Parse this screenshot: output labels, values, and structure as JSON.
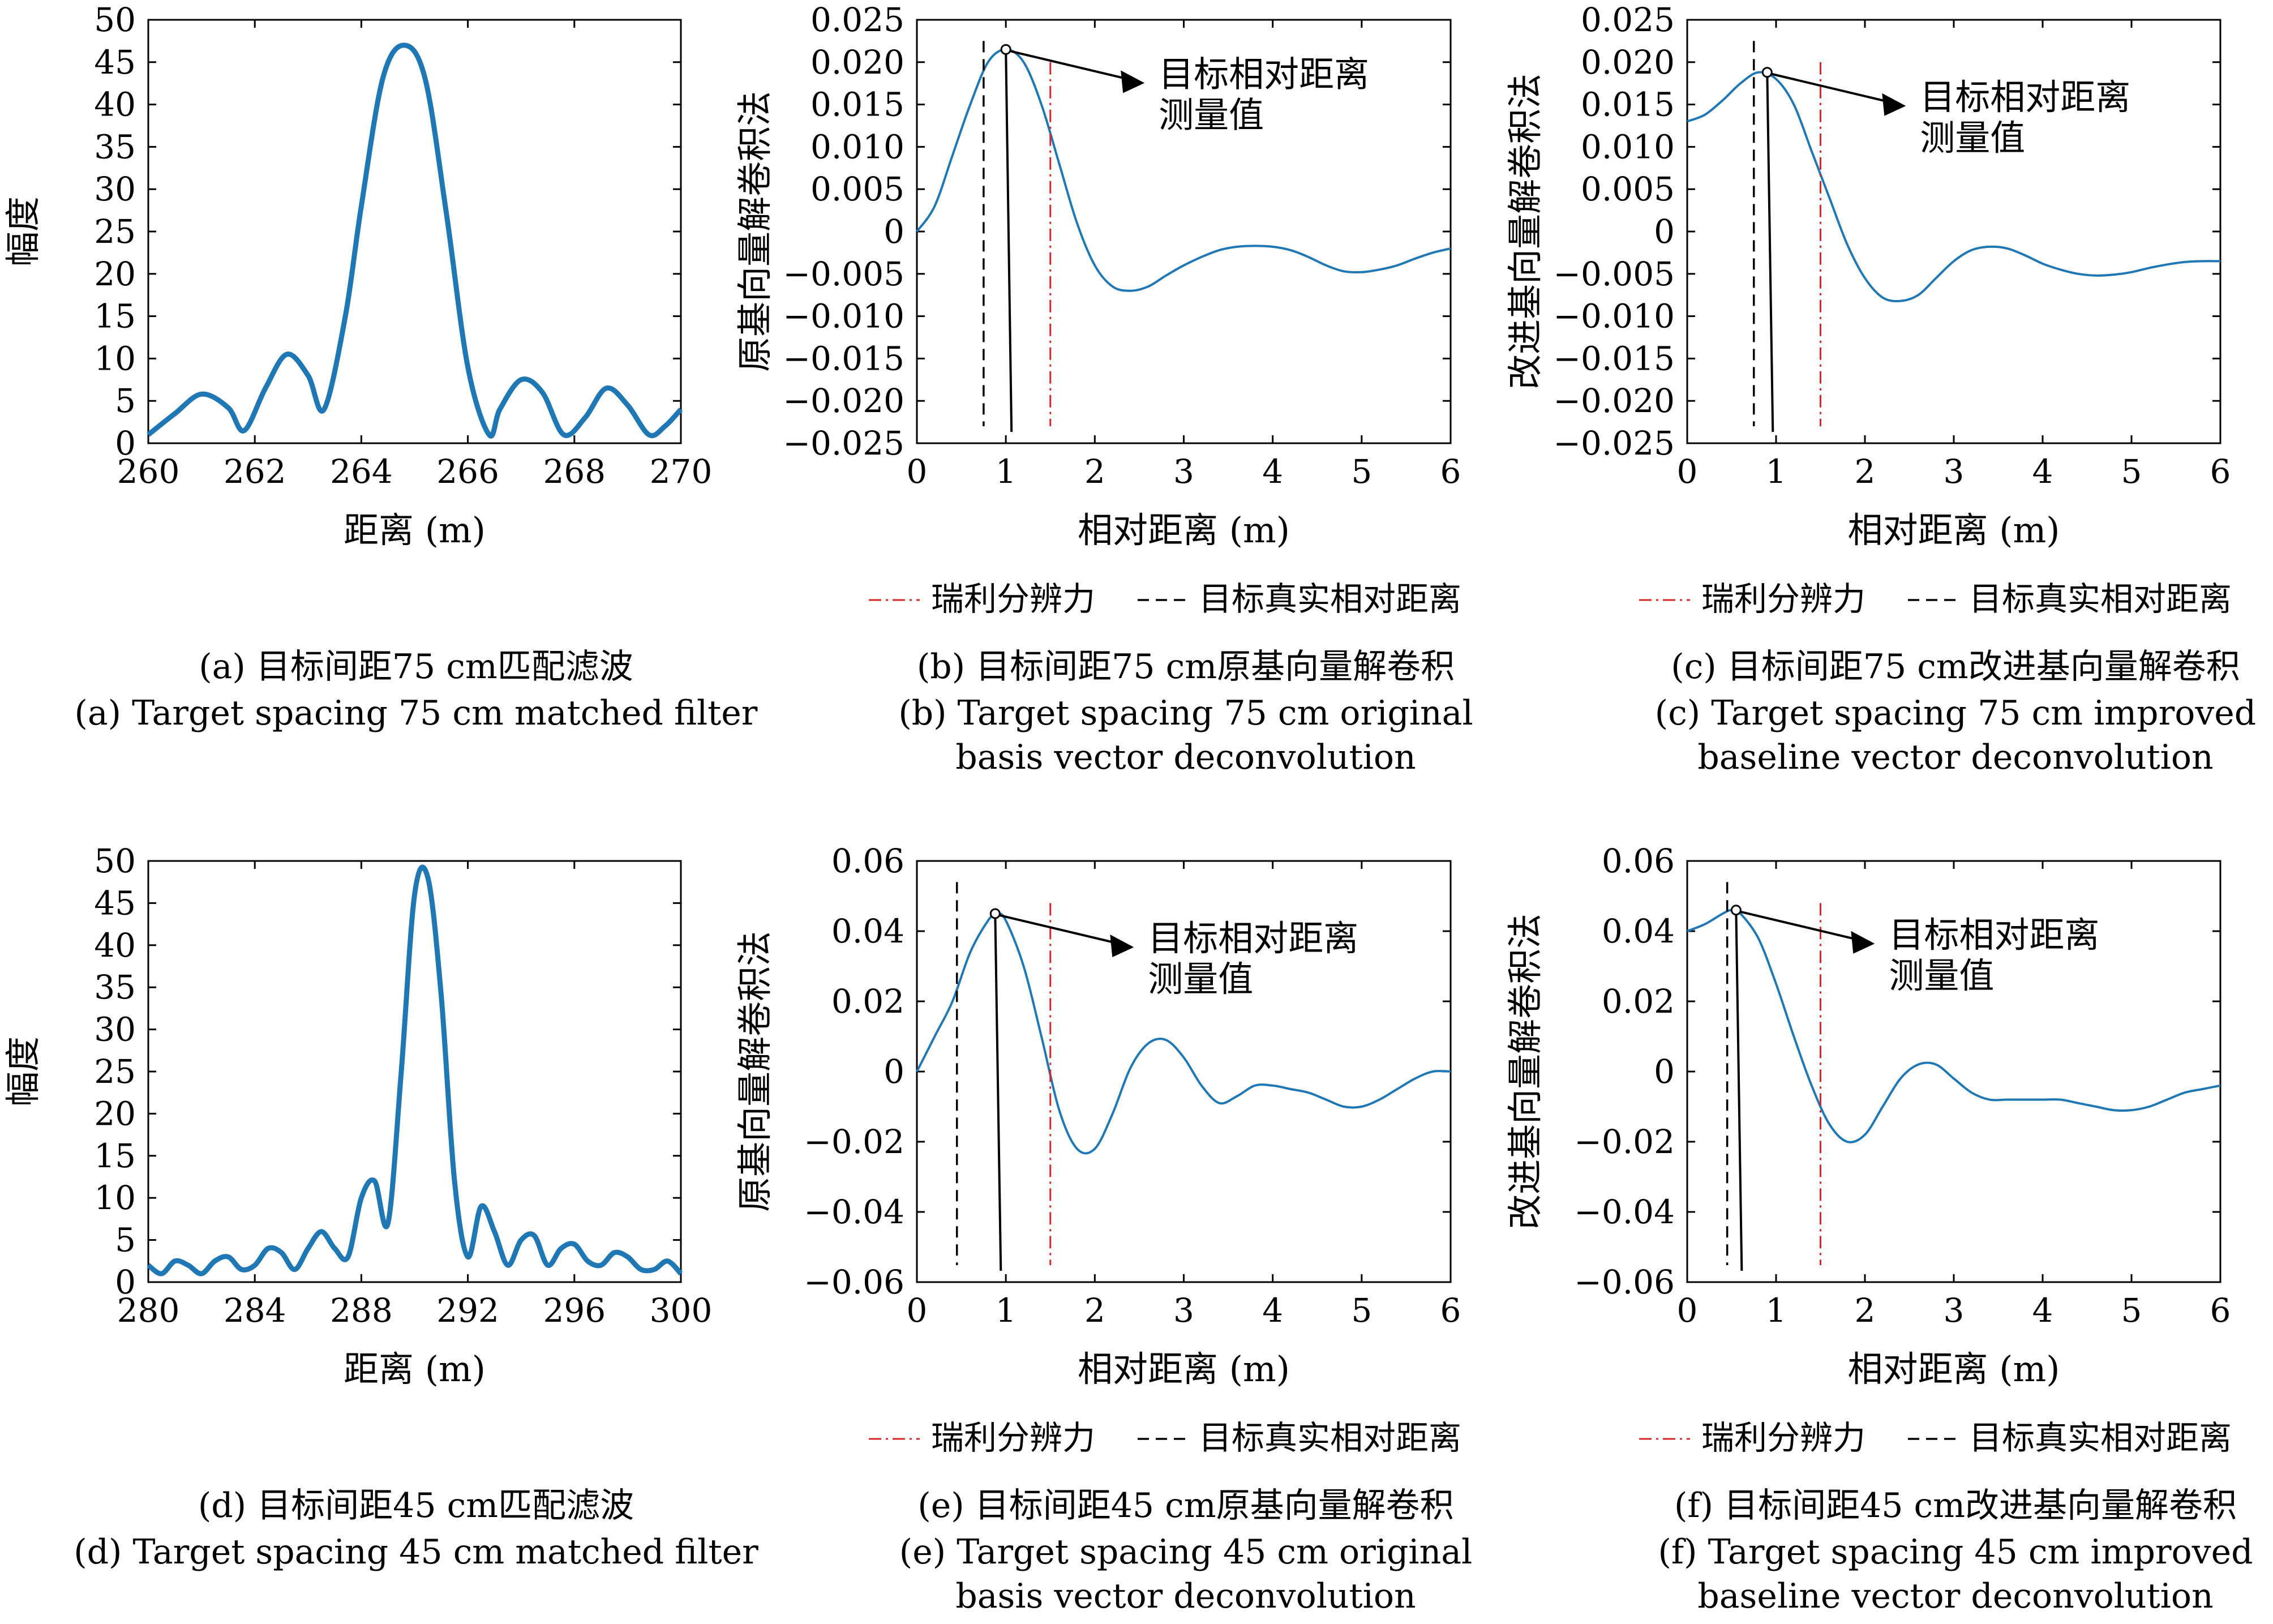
{
  "legend": {
    "rayleigh": "瑞利分辨力",
    "true_dist": "目标真实相对距离"
  },
  "annotation": {
    "line1": "目标相对距离",
    "line2": "测量值"
  },
  "panels": [
    {
      "id": "a",
      "kind": "matched",
      "caption_cn": "(a) 目标间距75 cm匹配滤波",
      "caption_en": [
        "(a) Target spacing 75 cm matched filter"
      ],
      "xlabel": "距离 (m)",
      "ylabel": "幅度",
      "xlim": [
        260,
        270
      ],
      "xticks": [
        260,
        262,
        264,
        266,
        268,
        270
      ],
      "xtick_labels": [
        "260",
        "262",
        "264",
        "266",
        "268",
        "270"
      ],
      "ylim": [
        0,
        50
      ],
      "yticks": [
        0,
        5,
        10,
        15,
        20,
        25,
        30,
        35,
        40,
        45,
        50
      ],
      "ytick_labels": [
        "0",
        "5",
        "10",
        "15",
        "20",
        "25",
        "30",
        "35",
        "40",
        "45",
        "50"
      ]
    },
    {
      "id": "b",
      "kind": "deconv",
      "caption_cn": "(b) 目标间距75 cm原基向量解卷积",
      "caption_en": [
        "(b) Target spacing 75 cm original",
        "basis vector deconvolution"
      ],
      "xlabel": "相对距离 (m)",
      "ylabel": "原基向量解卷积法",
      "xlim": [
        0,
        6
      ],
      "xticks": [
        0,
        1,
        2,
        3,
        4,
        5,
        6
      ],
      "xtick_labels": [
        "0",
        "1",
        "2",
        "3",
        "4",
        "5",
        "6"
      ],
      "ylim": [
        -0.025,
        0.025
      ],
      "yticks": [
        -0.025,
        -0.02,
        -0.015,
        -0.01,
        -0.005,
        0,
        0.005,
        0.01,
        0.015,
        0.02,
        0.025
      ],
      "ytick_labels": [
        "−0.025",
        "−0.020",
        "−0.015",
        "−0.010",
        "−0.005",
        "0",
        "0.005",
        "0.010",
        "0.015",
        "0.020",
        "0.025"
      ]
    },
    {
      "id": "c",
      "kind": "deconv",
      "caption_cn": "(c) 目标间距75 cm改进基向量解卷积",
      "caption_en": [
        "(c) Target spacing 75 cm improved",
        "baseline vector deconvolution"
      ],
      "xlabel": "相对距离 (m)",
      "ylabel": "改进基向量解卷积法",
      "xlim": [
        0,
        6
      ],
      "xticks": [
        0,
        1,
        2,
        3,
        4,
        5,
        6
      ],
      "xtick_labels": [
        "0",
        "1",
        "2",
        "3",
        "4",
        "5",
        "6"
      ],
      "ylim": [
        -0.025,
        0.025
      ],
      "yticks": [
        -0.025,
        -0.02,
        -0.015,
        -0.01,
        -0.005,
        0,
        0.005,
        0.01,
        0.015,
        0.02,
        0.025
      ],
      "ytick_labels": [
        "−0.025",
        "−0.020",
        "−0.015",
        "−0.010",
        "−0.005",
        "0",
        "0.005",
        "0.010",
        "0.015",
        "0.020",
        "0.025"
      ]
    },
    {
      "id": "d",
      "kind": "matched",
      "caption_cn": "(d) 目标间距45 cm匹配滤波",
      "caption_en": [
        "(d) Target spacing 45 cm matched filter"
      ],
      "xlabel": "距离 (m)",
      "ylabel": "幅度",
      "xlim": [
        280,
        300
      ],
      "xticks": [
        280,
        284,
        288,
        292,
        296,
        300
      ],
      "xtick_labels": [
        "280",
        "284",
        "288",
        "292",
        "296",
        "300"
      ],
      "ylim": [
        0,
        50
      ],
      "yticks": [
        0,
        5,
        10,
        15,
        20,
        25,
        30,
        35,
        40,
        45,
        50
      ],
      "ytick_labels": [
        "0",
        "5",
        "10",
        "15",
        "20",
        "25",
        "30",
        "35",
        "40",
        "45",
        "50"
      ]
    },
    {
      "id": "e",
      "kind": "deconv",
      "caption_cn": "(e) 目标间距45 cm原基向量解卷积",
      "caption_en": [
        "(e) Target spacing 45 cm original",
        "basis vector deconvolution"
      ],
      "xlabel": "相对距离 (m)",
      "ylabel": "原基向量解卷积法",
      "xlim": [
        0,
        6
      ],
      "xticks": [
        0,
        1,
        2,
        3,
        4,
        5,
        6
      ],
      "xtick_labels": [
        "0",
        "1",
        "2",
        "3",
        "4",
        "5",
        "6"
      ],
      "ylim": [
        -0.06,
        0.06
      ],
      "yticks": [
        -0.06,
        -0.04,
        -0.02,
        0,
        0.02,
        0.04,
        0.06
      ],
      "ytick_labels": [
        "−0.06",
        "−0.04",
        "−0.02",
        "0",
        "0.02",
        "0.04",
        "0.06"
      ]
    },
    {
      "id": "f",
      "kind": "deconv",
      "caption_cn": "(f) 目标间距45 cm改进基向量解卷积",
      "caption_en": [
        "(f) Target spacing 45 cm improved",
        "baseline vector deconvolution"
      ],
      "xlabel": "相对距离 (m)",
      "ylabel": "改进基向量解卷积法",
      "xlim": [
        0,
        6
      ],
      "xticks": [
        0,
        1,
        2,
        3,
        4,
        5,
        6
      ],
      "xtick_labels": [
        "0",
        "1",
        "2",
        "3",
        "4",
        "5",
        "6"
      ],
      "ylim": [
        -0.06,
        0.06
      ],
      "yticks": [
        -0.06,
        -0.04,
        -0.02,
        0,
        0.02,
        0.04,
        0.06
      ],
      "ytick_labels": [
        "−0.06",
        "−0.04",
        "−0.02",
        "0",
        "0.02",
        "0.04",
        "0.06"
      ]
    }
  ],
  "chart_data": [
    {
      "type": "line",
      "panel": "a",
      "xlabel": "距离 (m)",
      "ylabel": "幅度",
      "xlim": [
        260,
        270
      ],
      "ylim": [
        0,
        50
      ],
      "series": [
        {
          "color": "#1f77b4",
          "x": [
            260,
            260.5,
            261,
            261.5,
            261.8,
            262.2,
            262.6,
            263,
            263.3,
            263.7,
            264,
            264.4,
            264.8,
            265.2,
            265.6,
            266,
            266.4,
            266.6,
            267,
            267.4,
            267.8,
            268.2,
            268.6,
            269,
            269.4,
            269.7,
            270
          ],
          "y": [
            1,
            3.5,
            5.8,
            4.2,
            1.5,
            6.5,
            10.5,
            8,
            4,
            15,
            28,
            43,
            47,
            43,
            27,
            9,
            1,
            4,
            7.5,
            6,
            1,
            3,
            6.5,
            4.5,
            1,
            2,
            4
          ]
        }
      ]
    },
    {
      "type": "line",
      "panel": "b",
      "xlabel": "相对距离 (m)",
      "ylabel": "原基向量解卷积法",
      "xlim": [
        0,
        6
      ],
      "ylim": [
        -0.025,
        0.025
      ],
      "series": [
        {
          "color": "#1f77b4",
          "x": [
            0,
            0.2,
            0.4,
            0.6,
            0.8,
            1.0,
            1.2,
            1.4,
            1.6,
            1.8,
            2.0,
            2.2,
            2.4,
            2.6,
            2.8,
            3.0,
            3.2,
            3.4,
            3.6,
            3.8,
            4.0,
            4.2,
            4.4,
            4.6,
            4.8,
            5.0,
            5.2,
            5.4,
            5.6,
            5.8,
            6.0
          ],
          "y": [
            0,
            0.003,
            0.009,
            0.015,
            0.02,
            0.0215,
            0.02,
            0.015,
            0.008,
            0.001,
            -0.004,
            -0.0065,
            -0.007,
            -0.0065,
            -0.0052,
            -0.004,
            -0.003,
            -0.0022,
            -0.0018,
            -0.0017,
            -0.0018,
            -0.0022,
            -0.003,
            -0.004,
            -0.0047,
            -0.0048,
            -0.0045,
            -0.004,
            -0.0032,
            -0.0025,
            -0.002
          ]
        }
      ],
      "markers": {
        "measured_x": 1.0,
        "measured_y": 0.0215,
        "true_x": 0.75,
        "rayleigh_x": 1.5
      }
    },
    {
      "type": "line",
      "panel": "c",
      "xlabel": "相对距离 (m)",
      "ylabel": "改进基向量解卷积法",
      "xlim": [
        0,
        6
      ],
      "ylim": [
        -0.025,
        0.025
      ],
      "series": [
        {
          "color": "#1f77b4",
          "x": [
            0,
            0.2,
            0.4,
            0.6,
            0.8,
            1.0,
            1.2,
            1.4,
            1.6,
            1.8,
            2.0,
            2.2,
            2.4,
            2.6,
            2.8,
            3.0,
            3.2,
            3.4,
            3.6,
            3.8,
            4.0,
            4.2,
            4.4,
            4.6,
            4.8,
            5.0,
            5.2,
            5.4,
            5.6,
            5.8,
            6.0
          ],
          "y": [
            0.013,
            0.0138,
            0.0155,
            0.0175,
            0.0188,
            0.018,
            0.015,
            0.0095,
            0.004,
            -0.0015,
            -0.0055,
            -0.0078,
            -0.0082,
            -0.0075,
            -0.0055,
            -0.0035,
            -0.0022,
            -0.0018,
            -0.002,
            -0.0028,
            -0.0038,
            -0.0045,
            -0.005,
            -0.0052,
            -0.0051,
            -0.0048,
            -0.0043,
            -0.0039,
            -0.0036,
            -0.0035,
            -0.0035
          ]
        }
      ],
      "markers": {
        "measured_x": 0.9,
        "measured_y": 0.0188,
        "true_x": 0.75,
        "rayleigh_x": 1.5
      }
    },
    {
      "type": "line",
      "panel": "d",
      "xlabel": "距离 (m)",
      "ylabel": "幅度",
      "xlim": [
        280,
        300
      ],
      "ylim": [
        0,
        50
      ],
      "series": [
        {
          "color": "#1f77b4",
          "x": [
            280,
            280.5,
            281,
            281.5,
            282,
            282.5,
            283,
            283.5,
            284,
            284.5,
            285,
            285.5,
            286,
            286.5,
            287,
            287.5,
            288,
            288.5,
            289,
            289.5,
            290,
            290.5,
            291,
            291.5,
            292,
            292.5,
            293,
            293.5,
            294,
            294.5,
            295,
            295.5,
            296,
            296.5,
            297,
            297.5,
            298,
            298.5,
            299,
            299.5,
            300
          ],
          "y": [
            2,
            1,
            2.5,
            2,
            1,
            2.5,
            3,
            1.5,
            2,
            4,
            3.5,
            1.5,
            4,
            6,
            4,
            3,
            10,
            12,
            7,
            25,
            46,
            48,
            34,
            12,
            3,
            9,
            6,
            2,
            5,
            5.5,
            2,
            4,
            4.5,
            2.5,
            2,
            3.5,
            3,
            1.5,
            1.5,
            2.5,
            1
          ]
        }
      ]
    },
    {
      "type": "line",
      "panel": "e",
      "xlabel": "相对距离 (m)",
      "ylabel": "原基向量解卷积法",
      "xlim": [
        0,
        6
      ],
      "ylim": [
        -0.06,
        0.06
      ],
      "series": [
        {
          "color": "#1f77b4",
          "x": [
            0,
            0.2,
            0.4,
            0.6,
            0.8,
            0.9,
            1.0,
            1.2,
            1.4,
            1.6,
            1.8,
            2.0,
            2.2,
            2.4,
            2.6,
            2.8,
            3.0,
            3.2,
            3.4,
            3.6,
            3.8,
            4.0,
            4.2,
            4.4,
            4.6,
            4.8,
            5.0,
            5.2,
            5.4,
            5.6,
            5.8,
            6.0
          ],
          "y": [
            0,
            0.01,
            0.02,
            0.034,
            0.043,
            0.045,
            0.043,
            0.03,
            0.01,
            -0.011,
            -0.022,
            -0.022,
            -0.012,
            0.001,
            0.008,
            0.009,
            0.004,
            -0.004,
            -0.009,
            -0.007,
            -0.004,
            -0.004,
            -0.005,
            -0.006,
            -0.008,
            -0.01,
            -0.01,
            -0.008,
            -0.005,
            -0.002,
            0,
            0
          ]
        }
      ],
      "markers": {
        "measured_x": 0.88,
        "measured_y": 0.045,
        "true_x": 0.45,
        "rayleigh_x": 1.5
      }
    },
    {
      "type": "line",
      "panel": "f",
      "xlabel": "相对距离 (m)",
      "ylabel": "改进基向量解卷积法",
      "xlim": [
        0,
        6
      ],
      "ylim": [
        -0.06,
        0.06
      ],
      "series": [
        {
          "color": "#1f77b4",
          "x": [
            0,
            0.2,
            0.4,
            0.5,
            0.6,
            0.8,
            1.0,
            1.2,
            1.4,
            1.6,
            1.8,
            2.0,
            2.2,
            2.4,
            2.6,
            2.8,
            3.0,
            3.2,
            3.4,
            3.6,
            3.8,
            4.0,
            4.2,
            4.4,
            4.6,
            4.8,
            5.0,
            5.2,
            5.4,
            5.6,
            5.8,
            6.0
          ],
          "y": [
            0.04,
            0.042,
            0.045,
            0.046,
            0.045,
            0.038,
            0.025,
            0.01,
            -0.004,
            -0.015,
            -0.02,
            -0.018,
            -0.01,
            -0.002,
            0.002,
            0.002,
            -0.002,
            -0.006,
            -0.008,
            -0.008,
            -0.008,
            -0.008,
            -0.008,
            -0.009,
            -0.01,
            -0.011,
            -0.011,
            -0.01,
            -0.008,
            -0.006,
            -0.005,
            -0.004
          ]
        }
      ],
      "markers": {
        "measured_x": 0.55,
        "measured_y": 0.046,
        "true_x": 0.45,
        "rayleigh_x": 1.5
      }
    }
  ]
}
